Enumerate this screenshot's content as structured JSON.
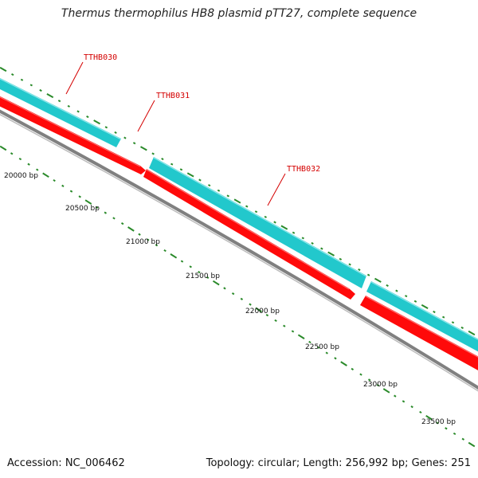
{
  "title": "Thermus thermophilus HB8 plasmid pTT27, complete sequence",
  "footer": {
    "accession": "Accession: NC_006462",
    "summary": "Topology: circular; Length: 256,992 bp; Genes: 251"
  },
  "colors": {
    "forward_strand": "#22c8cc",
    "reverse_strand": "#ff0a0a",
    "backbone": "#808080",
    "ticks": "#2a8a2a",
    "gene_label": "#d40000"
  },
  "scale": {
    "labels": [
      "20000 bp",
      "20500 bp",
      "21000 bp",
      "21500 bp",
      "22000 bp",
      "22500 bp",
      "23000 bp",
      "23500 bp"
    ]
  },
  "genes": [
    {
      "label": "TTHB030",
      "strand": "forward"
    },
    {
      "label": "TTHB031",
      "strand": "forward"
    },
    {
      "label": "TTHB032",
      "strand": "forward"
    }
  ]
}
